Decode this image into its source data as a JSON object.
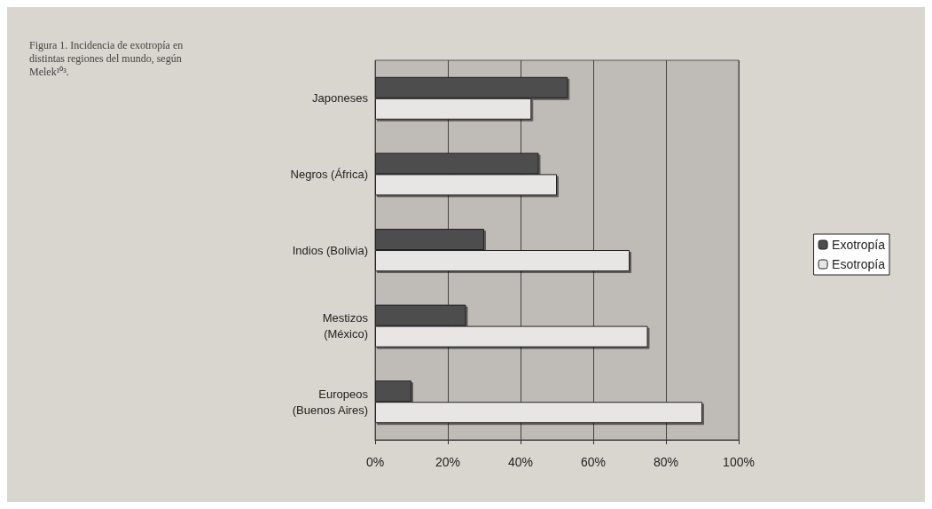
{
  "chart_data": {
    "type": "bar",
    "orientation": "horizontal",
    "title": "Figura 1. Incidencia de exotropía en distintas regiones del mundo, según Melek¹⁰³.",
    "categories": [
      "Japoneses",
      "Negros (África)",
      "Indios (Bolivia)",
      "Mestizos\n(México)",
      "Europeos\n(Buenos Aires)"
    ],
    "series": [
      {
        "name": "Exotropía",
        "color": "#4d4d4d",
        "values": [
          53,
          45,
          30,
          25,
          10
        ]
      },
      {
        "name": "Esotropía",
        "color": "#e8e6e4",
        "values": [
          43,
          50,
          70,
          75,
          90
        ]
      }
    ],
    "xlim": [
      0,
      100
    ],
    "xticks": [
      {
        "value": 0,
        "label": "0%"
      },
      {
        "value": 20,
        "label": "20%"
      },
      {
        "value": 40,
        "label": "40%"
      },
      {
        "value": 60,
        "label": "60%"
      },
      {
        "value": 80,
        "label": "80%"
      },
      {
        "value": 100,
        "label": "100%"
      }
    ],
    "grid": "x",
    "legend": "right"
  }
}
